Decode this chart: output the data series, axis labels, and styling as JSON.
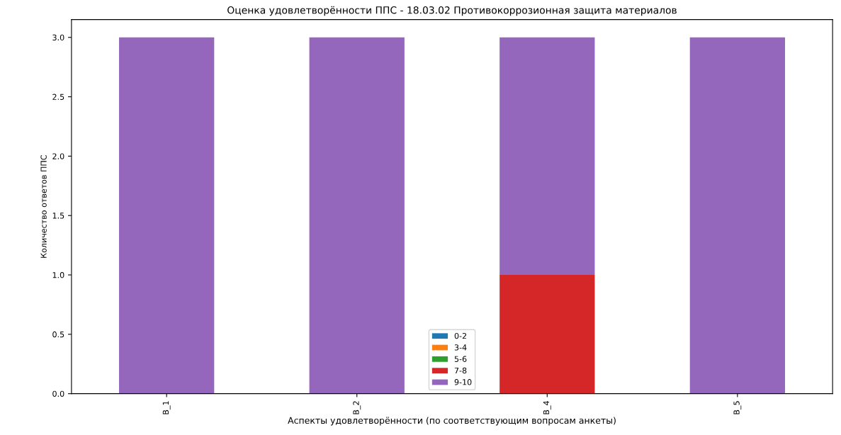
{
  "chart_data": {
    "type": "bar",
    "title": "Оценка удовлетворённости ППС - 18.03.02 Противокоррозионная защита материалов",
    "xlabel": "Аспекты удовлетворённости (по соответствующим вопросам анкеты)",
    "ylabel": "Количество ответов ППС",
    "categories": [
      "В_1",
      "В_2",
      "В_4",
      "В_5"
    ],
    "stacked": true,
    "series": [
      {
        "name": "0-2",
        "color": "#1f77b4",
        "values": [
          0,
          0,
          0,
          0
        ]
      },
      {
        "name": "3-4",
        "color": "#ff7f0e",
        "values": [
          0,
          0,
          0,
          0
        ]
      },
      {
        "name": "5-6",
        "color": "#2ca02c",
        "values": [
          0,
          0,
          0,
          0
        ]
      },
      {
        "name": "7-8",
        "color": "#d62728",
        "values": [
          0,
          0,
          1,
          0
        ]
      },
      {
        "name": "9-10",
        "color": "#9467bd",
        "values": [
          3,
          3,
          2,
          3
        ]
      }
    ],
    "ylim": [
      0,
      3.15
    ],
    "yticks": [
      {
        "value": 0,
        "label": "0.0"
      },
      {
        "value": 0.5,
        "label": "0.5"
      },
      {
        "value": 1,
        "label": "1.0"
      },
      {
        "value": 1.5,
        "label": "1.5"
      },
      {
        "value": 2,
        "label": "2.0"
      },
      {
        "value": 2.5,
        "label": "2.5"
      },
      {
        "value": 3,
        "label": "3.0"
      }
    ],
    "legend": "bottom",
    "grid": false
  }
}
